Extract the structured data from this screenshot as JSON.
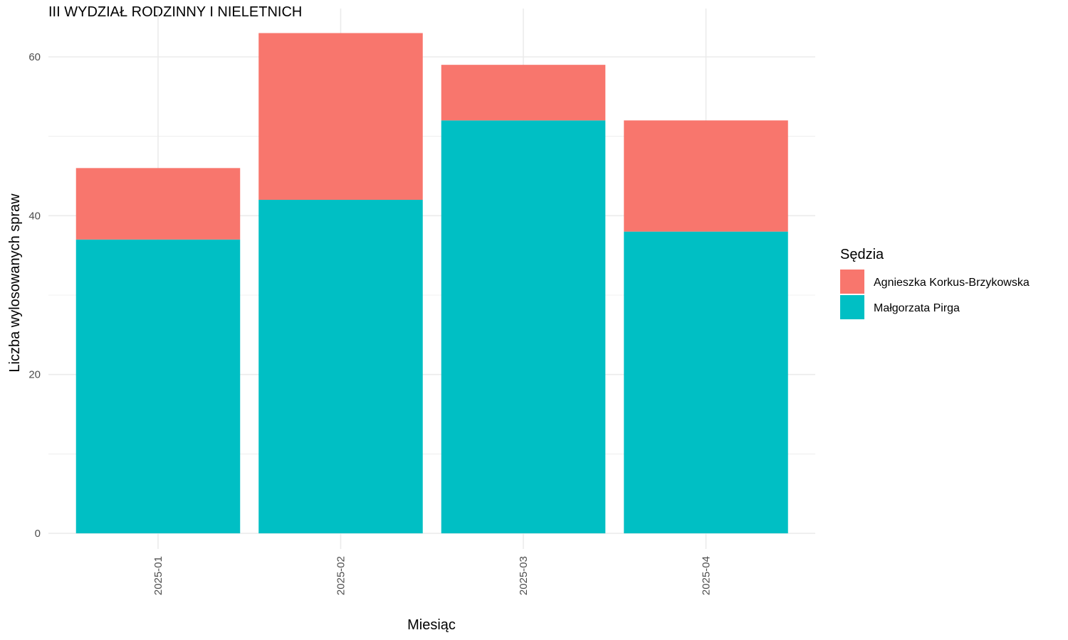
{
  "chart_data": {
    "type": "bar",
    "stacked": true,
    "title": "III WYDZIAŁ RODZINNY I NIELETNICH",
    "xlabel": "Miesiąc",
    "ylabel": "Liczba wylosowanych spraw",
    "categories": [
      "2025-01",
      "2025-02",
      "2025-03",
      "2025-04"
    ],
    "series": [
      {
        "name": "Małgorzata Pirga",
        "values": [
          37,
          42,
          52,
          38
        ],
        "color": "#00BFC4"
      },
      {
        "name": "Agnieszka Korkus-Brzykowska",
        "values": [
          9,
          21,
          7,
          14
        ],
        "color": "#F8766D"
      }
    ],
    "ylim": [
      0,
      63
    ],
    "yticks": [
      0,
      20,
      40,
      60
    ],
    "grid": true,
    "x_tick_rotation": "vertical",
    "legend": {
      "title": "Sędzia",
      "position": "right",
      "entries": [
        {
          "label": "Agnieszka Korkus-Brzykowska",
          "color": "#F8766D"
        },
        {
          "label": "Małgorzata Pirga",
          "color": "#00BFC4"
        }
      ]
    }
  }
}
